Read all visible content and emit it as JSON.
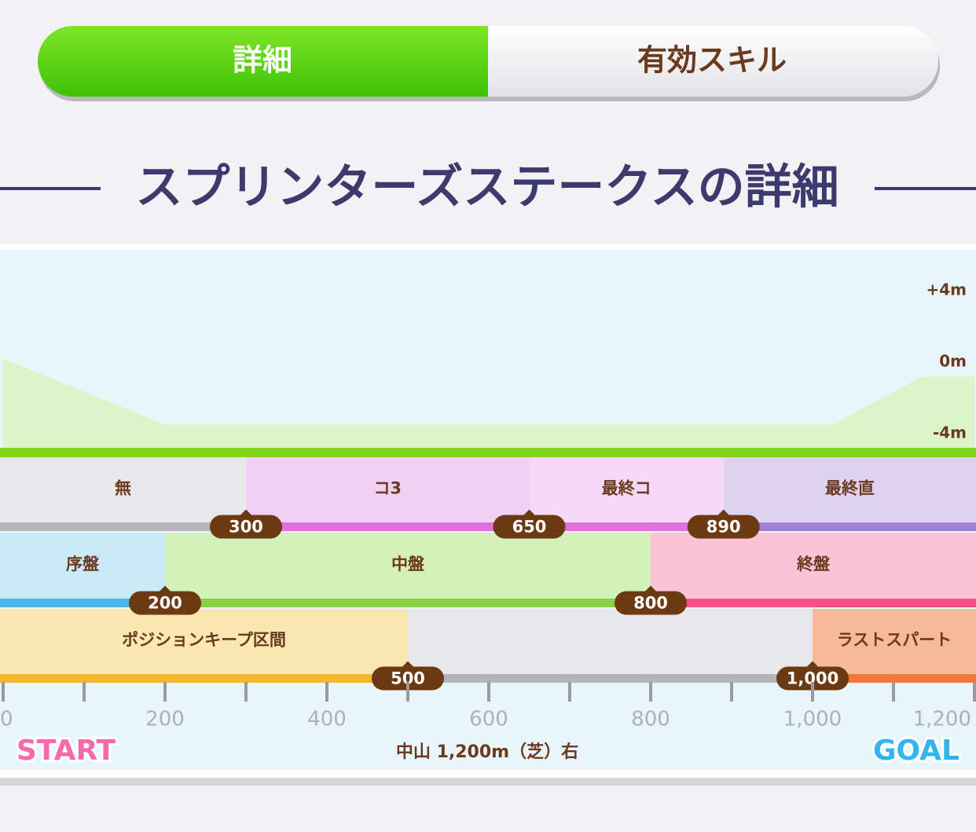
{
  "tabs": {
    "items": [
      "詳細",
      "有効スキル"
    ],
    "active": 0
  },
  "title": "スプリンターズステークスの詳細",
  "course": {
    "xlim": [
      0,
      1200
    ],
    "xticks": [
      0,
      200,
      400,
      600,
      800,
      {
        "value": 1000,
        "label": "1,000"
      },
      {
        "value": 1200,
        "label": "1,200"
      }
    ],
    "xticks_minor": [
      100,
      300,
      500,
      700,
      900,
      1100
    ],
    "elevation": {
      "x": [
        0,
        200,
        1025,
        1135,
        1200
      ],
      "values": [
        0.2,
        -3.5,
        -3.5,
        -0.8,
        -0.8
      ],
      "yticks": [
        {
          "value": 4,
          "label": "+4m"
        },
        {
          "value": 0,
          "label": "0m"
        },
        {
          "value": -4,
          "label": "-4m"
        }
      ],
      "color": "#dcf5c8",
      "line_color": "#7ed321"
    },
    "rows": [
      {
        "segments": [
          {
            "label": "無",
            "color": "#e8e8ea",
            "line_color": "#b5b5b8"
          },
          {
            "label": "コ3",
            "color": "#f2d0f5",
            "line_color": "#e070e0"
          },
          {
            "label": "最終コ",
            "color": "#f7d9f7",
            "line_color": "#e070e0"
          },
          {
            "label": "最終直",
            "color": "#ddd3f0",
            "line_color": "#a080d8"
          }
        ],
        "boundaries": [
          300,
          650,
          890
        ]
      },
      {
        "segments": [
          {
            "label": "序盤",
            "color": "#c8e9f8",
            "line_color": "#4ab8e8"
          },
          {
            "label": "中盤",
            "color": "#d5f1bb",
            "line_color": "#88d048"
          },
          {
            "label": "終盤",
            "color": "#fcc2d5",
            "line_color": "#f5508a"
          }
        ],
        "boundaries": [
          200,
          800
        ]
      },
      {
        "segments": [
          {
            "label": "ポジションキープ区間",
            "color": "#fbe7b2",
            "line_color": "#f5b82a"
          },
          {
            "label": null,
            "color": "#e8e8ea",
            "line_color": "#b5b5b8"
          },
          {
            "label": "ラストスパート",
            "color": "#f8b999",
            "line_color": "#f07838"
          }
        ],
        "boundaries": [
          500,
          {
            "value": 1000,
            "label": "1,000"
          }
        ]
      }
    ],
    "course_name": "中山 1,200m（芝）右",
    "start_label": "START",
    "goal_label": "GOAL"
  }
}
